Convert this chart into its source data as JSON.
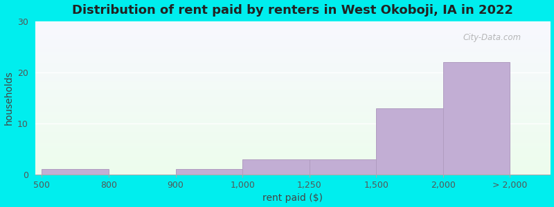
{
  "title": "Distribution of rent paid by renters in West Okoboji, IA in 2022",
  "xlabel": "rent paid ($)",
  "ylabel": "households",
  "tick_labels": [
    "500",
    "800",
    "900",
    "1,000",
    "1,250",
    "1,500",
    "2,000",
    "> 2,000"
  ],
  "tick_positions": [
    0,
    1,
    2,
    3,
    4,
    5,
    6,
    7
  ],
  "bar_lefts": [
    0,
    1,
    2,
    3,
    4,
    5,
    6
  ],
  "bar_widths": [
    1,
    1,
    1,
    1,
    1,
    1,
    1
  ],
  "bar_heights": [
    1,
    0,
    1,
    3,
    3,
    13,
    22
  ],
  "bar_color": "#c2aed4",
  "bar_edge_color": "#b09cc0",
  "ylim": [
    0,
    30
  ],
  "yticks": [
    0,
    10,
    20,
    30
  ],
  "xlim": [
    -0.1,
    7.6
  ],
  "background_color": "#00eeee",
  "plot_bg_color_top": "#edfded",
  "plot_bg_color_bottom": "#f8f8ff",
  "title_fontsize": 13,
  "axis_label_fontsize": 10,
  "tick_fontsize": 9,
  "watermark": "City-Data.com"
}
